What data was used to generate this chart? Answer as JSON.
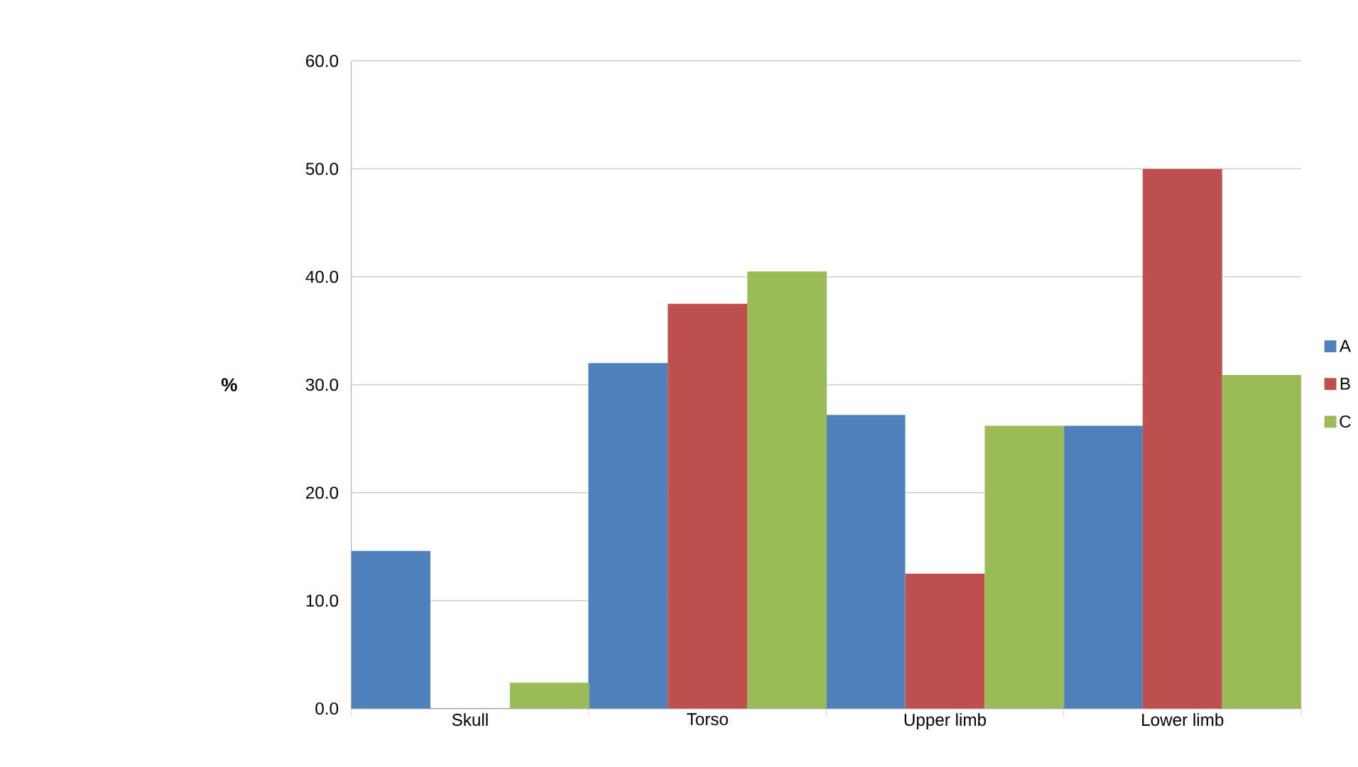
{
  "chart_data": {
    "type": "bar",
    "ylabel": "%",
    "categories": [
      "Skull",
      "Torso",
      "Upper limb",
      "Lower limb"
    ],
    "series": [
      {
        "name": "A",
        "color": "#4f81bd",
        "values": [
          14.6,
          32.0,
          27.2,
          26.2
        ]
      },
      {
        "name": "B",
        "color": "#c0504d",
        "values": [
          0.0,
          37.5,
          12.5,
          50.0
        ]
      },
      {
        "name": "C",
        "color": "#9bbb59",
        "values": [
          2.4,
          40.5,
          26.2,
          30.9
        ]
      }
    ],
    "ylim": [
      0,
      60
    ],
    "yticks": [
      {
        "value": 0,
        "label": "0.0"
      },
      {
        "value": 10,
        "label": "10.0"
      },
      {
        "value": 20,
        "label": "20.0"
      },
      {
        "value": 30,
        "label": "30.0"
      },
      {
        "value": 40,
        "label": "40.0"
      },
      {
        "value": 50,
        "label": "50.0"
      },
      {
        "value": 60,
        "label": "60.0"
      }
    ],
    "grid": "y",
    "legend": "right"
  }
}
